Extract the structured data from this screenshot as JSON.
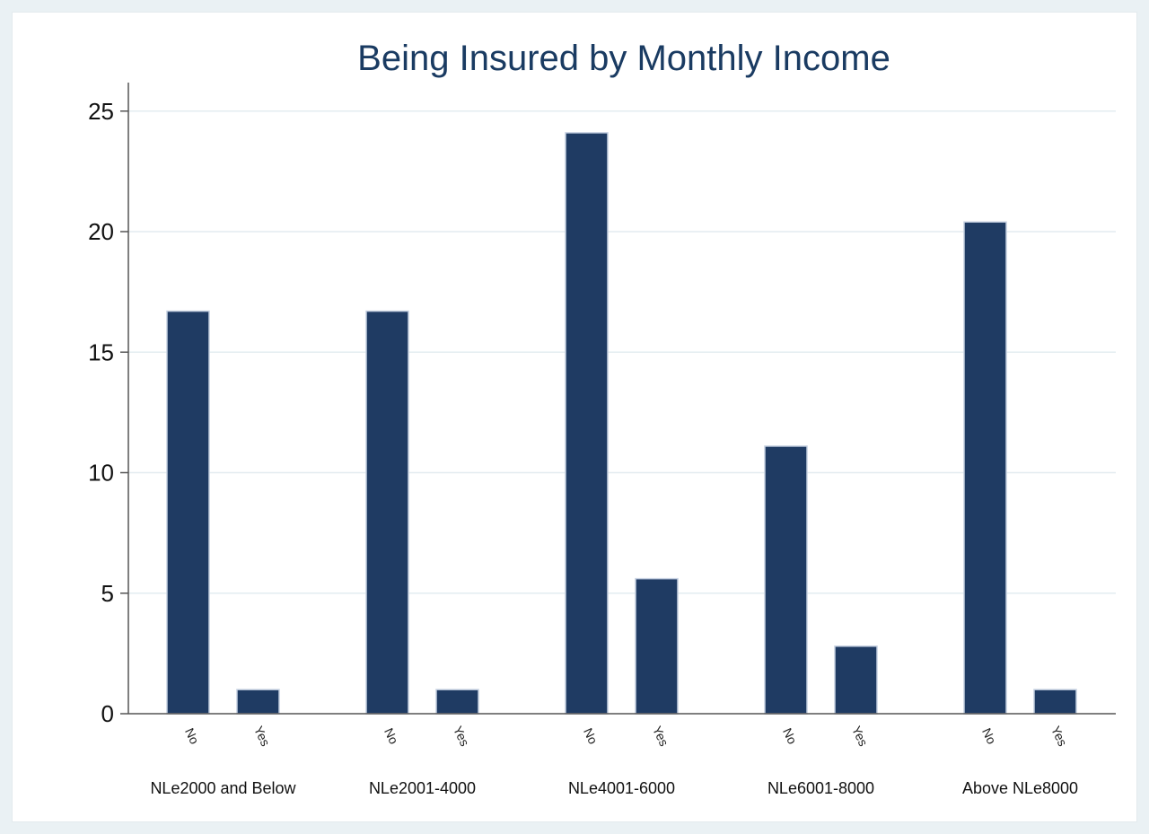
{
  "chart_data": {
    "type": "bar",
    "title": "Being Insured by Monthly Income",
    "xlabel": "",
    "ylabel": "",
    "ylim": [
      0,
      26
    ],
    "yticks": [
      0,
      5,
      10,
      15,
      20,
      25
    ],
    "grid": true,
    "legend": "none",
    "bar_color": "#1f3b63",
    "bar_outline": "#c4cfe0",
    "groups": [
      {
        "category": "NLe2000 and Below",
        "bars": [
          {
            "label": "No",
            "value": 16.7
          },
          {
            "label": "Yes",
            "value": 1.0
          }
        ]
      },
      {
        "category": "NLe2001-4000",
        "bars": [
          {
            "label": "No",
            "value": 16.7
          },
          {
            "label": "Yes",
            "value": 1.0
          }
        ]
      },
      {
        "category": "NLe4001-6000",
        "bars": [
          {
            "label": "No",
            "value": 24.1
          },
          {
            "label": "Yes",
            "value": 5.6
          }
        ]
      },
      {
        "category": "NLe6001-8000",
        "bars": [
          {
            "label": "No",
            "value": 11.1
          },
          {
            "label": "Yes",
            "value": 2.8
          }
        ]
      },
      {
        "category": "Above NLe8000",
        "bars": [
          {
            "label": "No",
            "value": 20.4
          },
          {
            "label": "Yes",
            "value": 1.0
          }
        ]
      }
    ]
  }
}
